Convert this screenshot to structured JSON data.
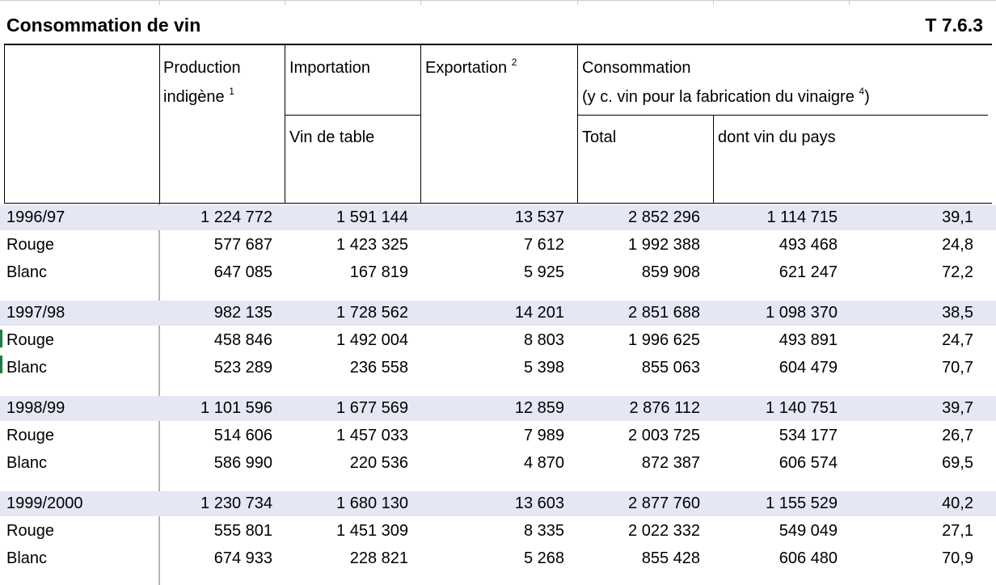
{
  "table": {
    "title": "Consommation de vin",
    "code": "T 7.6.3",
    "headers": {
      "production": "Production",
      "production_line2": "indigène",
      "production_note": "1",
      "importation": "Importation",
      "vin_de_table": "Vin de table",
      "exportation": "Exportation",
      "exportation_note": "2",
      "consommation": "Consommation",
      "consommation_line2": "(y c. vin pour la fabrication du vinaigre",
      "consommation_note": "4",
      "consommation_close": ")",
      "total": "Total",
      "dont_vin_du_pays": "dont vin du pays"
    },
    "groups": [
      {
        "rows": [
          {
            "label": "1996/97",
            "production": "1 224 772",
            "importation": "1 591 144",
            "exportation": "13 537",
            "total": "2 852 296",
            "dont": "1 114 715",
            "pct": "39,1"
          },
          {
            "label": "Rouge",
            "production": "577 687",
            "importation": "1 423 325",
            "exportation": "7 612",
            "total": "1 992 388",
            "dont": "493 468",
            "pct": "24,8"
          },
          {
            "label": "Blanc",
            "production": "647 085",
            "importation": "167 819",
            "exportation": "5 925",
            "total": "859 908",
            "dont": "621 247",
            "pct": "72,2"
          }
        ]
      },
      {
        "rows": [
          {
            "label": "1997/98",
            "production": "982 135",
            "importation": "1 728 562",
            "exportation": "14 201",
            "total": "2 851 688",
            "dont": "1 098 370",
            "pct": "38,5"
          },
          {
            "label": "Rouge",
            "production": "458 846",
            "importation": "1 492 004",
            "exportation": "8 803",
            "total": "1 996 625",
            "dont": "493 891",
            "pct": "24,7"
          },
          {
            "label": "Blanc",
            "production": "523 289",
            "importation": "236 558",
            "exportation": "5 398",
            "total": "855 063",
            "dont": "604 479",
            "pct": "70,7"
          }
        ]
      },
      {
        "rows": [
          {
            "label": "1998/99",
            "production": "1 101 596",
            "importation": "1 677 569",
            "exportation": "12 859",
            "total": "2 876 112",
            "dont": "1 140 751",
            "pct": "39,7"
          },
          {
            "label": "Rouge",
            "production": "514 606",
            "importation": "1 457 033",
            "exportation": "7 989",
            "total": "2 003 725",
            "dont": "534 177",
            "pct": "26,7"
          },
          {
            "label": "Blanc",
            "production": "586 990",
            "importation": "220 536",
            "exportation": "4 870",
            "total": "872 387",
            "dont": "606 574",
            "pct": "69,5"
          }
        ]
      },
      {
        "rows": [
          {
            "label": "1999/2000",
            "production": "1 230 734",
            "importation": "1 680 130",
            "exportation": "13 603",
            "total": "2 877 760",
            "dont": "1 155 529",
            "pct": "40,2"
          },
          {
            "label": "Rouge",
            "production": "555 801",
            "importation": "1 451 309",
            "exportation": "8 335",
            "total": "2 022 332",
            "dont": "549 049",
            "pct": "27,1"
          },
          {
            "label": "Blanc",
            "production": "674 933",
            "importation": "228 821",
            "exportation": "5 268",
            "total": "855 428",
            "dont": "606 480",
            "pct": "70,9"
          }
        ]
      }
    ],
    "colors": {
      "band": "#e6e7f5",
      "grid": "#c9c9c9",
      "rule": "#000000"
    }
  }
}
